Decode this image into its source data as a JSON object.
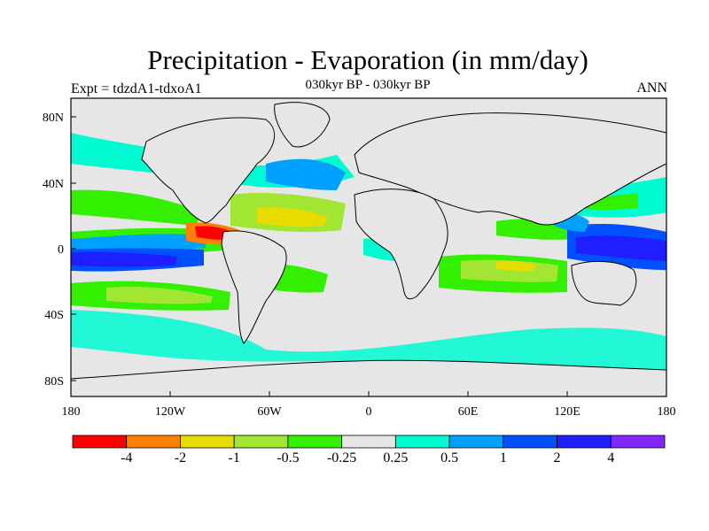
{
  "title": "Precipitation - Evaporation (in mm/day)",
  "subtitle": "030kyr BP - 030kyr BP",
  "left_label": "Expt = tdzdA1-tdxoA1",
  "right_label": "ANN",
  "lat_ticks": [
    "80N",
    "40N",
    "0",
    "40S",
    "80S"
  ],
  "lon_ticks": [
    "180",
    "120W",
    "60W",
    "0",
    "60E",
    "120E",
    "180"
  ],
  "colorbar": {
    "colors": [
      "#ff0000",
      "#ff8000",
      "#e6dc00",
      "#a0e632",
      "#32f000",
      "#e6e6e6",
      "#00fad2",
      "#00a0ff",
      "#0050ff",
      "#1e1eff",
      "#8228ff"
    ],
    "labels": [
      "-4",
      "-2",
      "-1",
      "-0.5",
      "-0.25",
      "0.25",
      "0.5",
      "1",
      "2",
      "4"
    ]
  }
}
